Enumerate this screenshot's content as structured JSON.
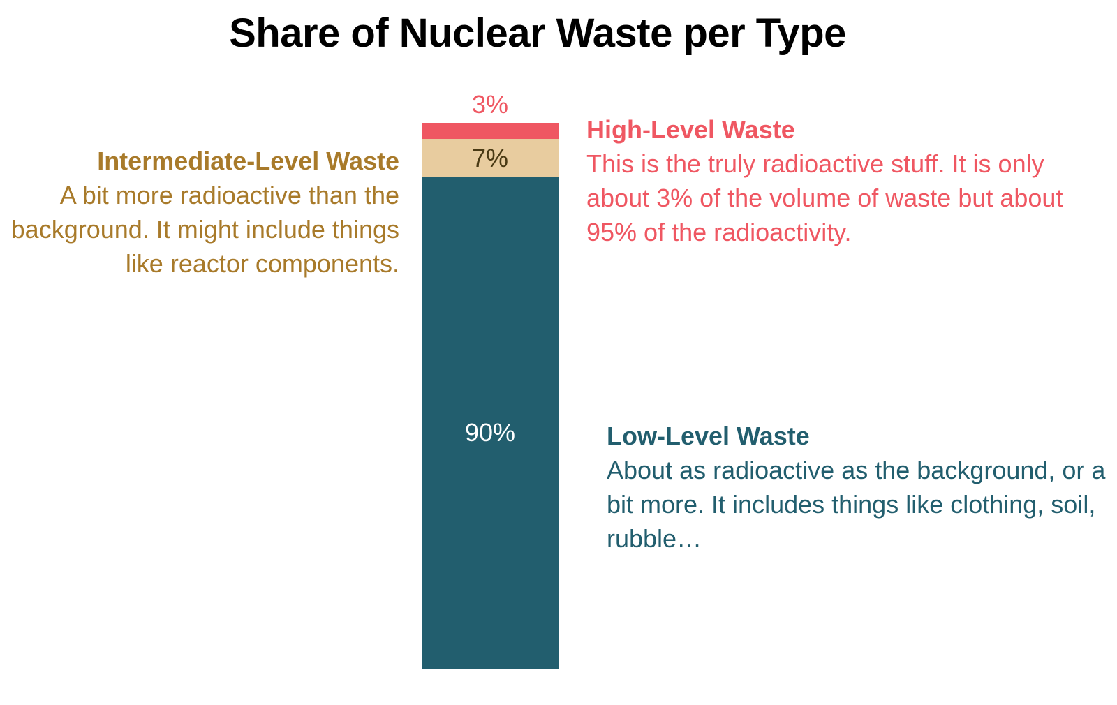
{
  "chart_data": {
    "type": "bar",
    "stacked": true,
    "title": "Share of Nuclear Waste per Type",
    "unit": "%",
    "segments": [
      {
        "name": "Low-Level Waste",
        "value": 90,
        "label": "90%",
        "color": "#225e6e",
        "label_color": "#ffffff",
        "description": "About as radioactive as the background, or a bit more. It includes things like clothing, soil, rubble…"
      },
      {
        "name": "Intermediate-Level Waste",
        "value": 7,
        "label": "7%",
        "color": "#e8cc9f",
        "label_color": "#4a3a14",
        "description": "A bit more radioactive than the background. It might include things like reactor components."
      },
      {
        "name": "High-Level Waste",
        "value": 3,
        "label": "3%",
        "color": "#ef5762",
        "label_color": "#ef5762",
        "description": "This is the truly radioactive stuff. It is only about 3% of the volume of waste but about 95% of the radioactivity."
      }
    ],
    "annotation_colors": {
      "Low-Level Waste": "#225e6e",
      "Intermediate-Level Waste": "#a87a2a",
      "High-Level Waste": "#ef5762"
    }
  }
}
